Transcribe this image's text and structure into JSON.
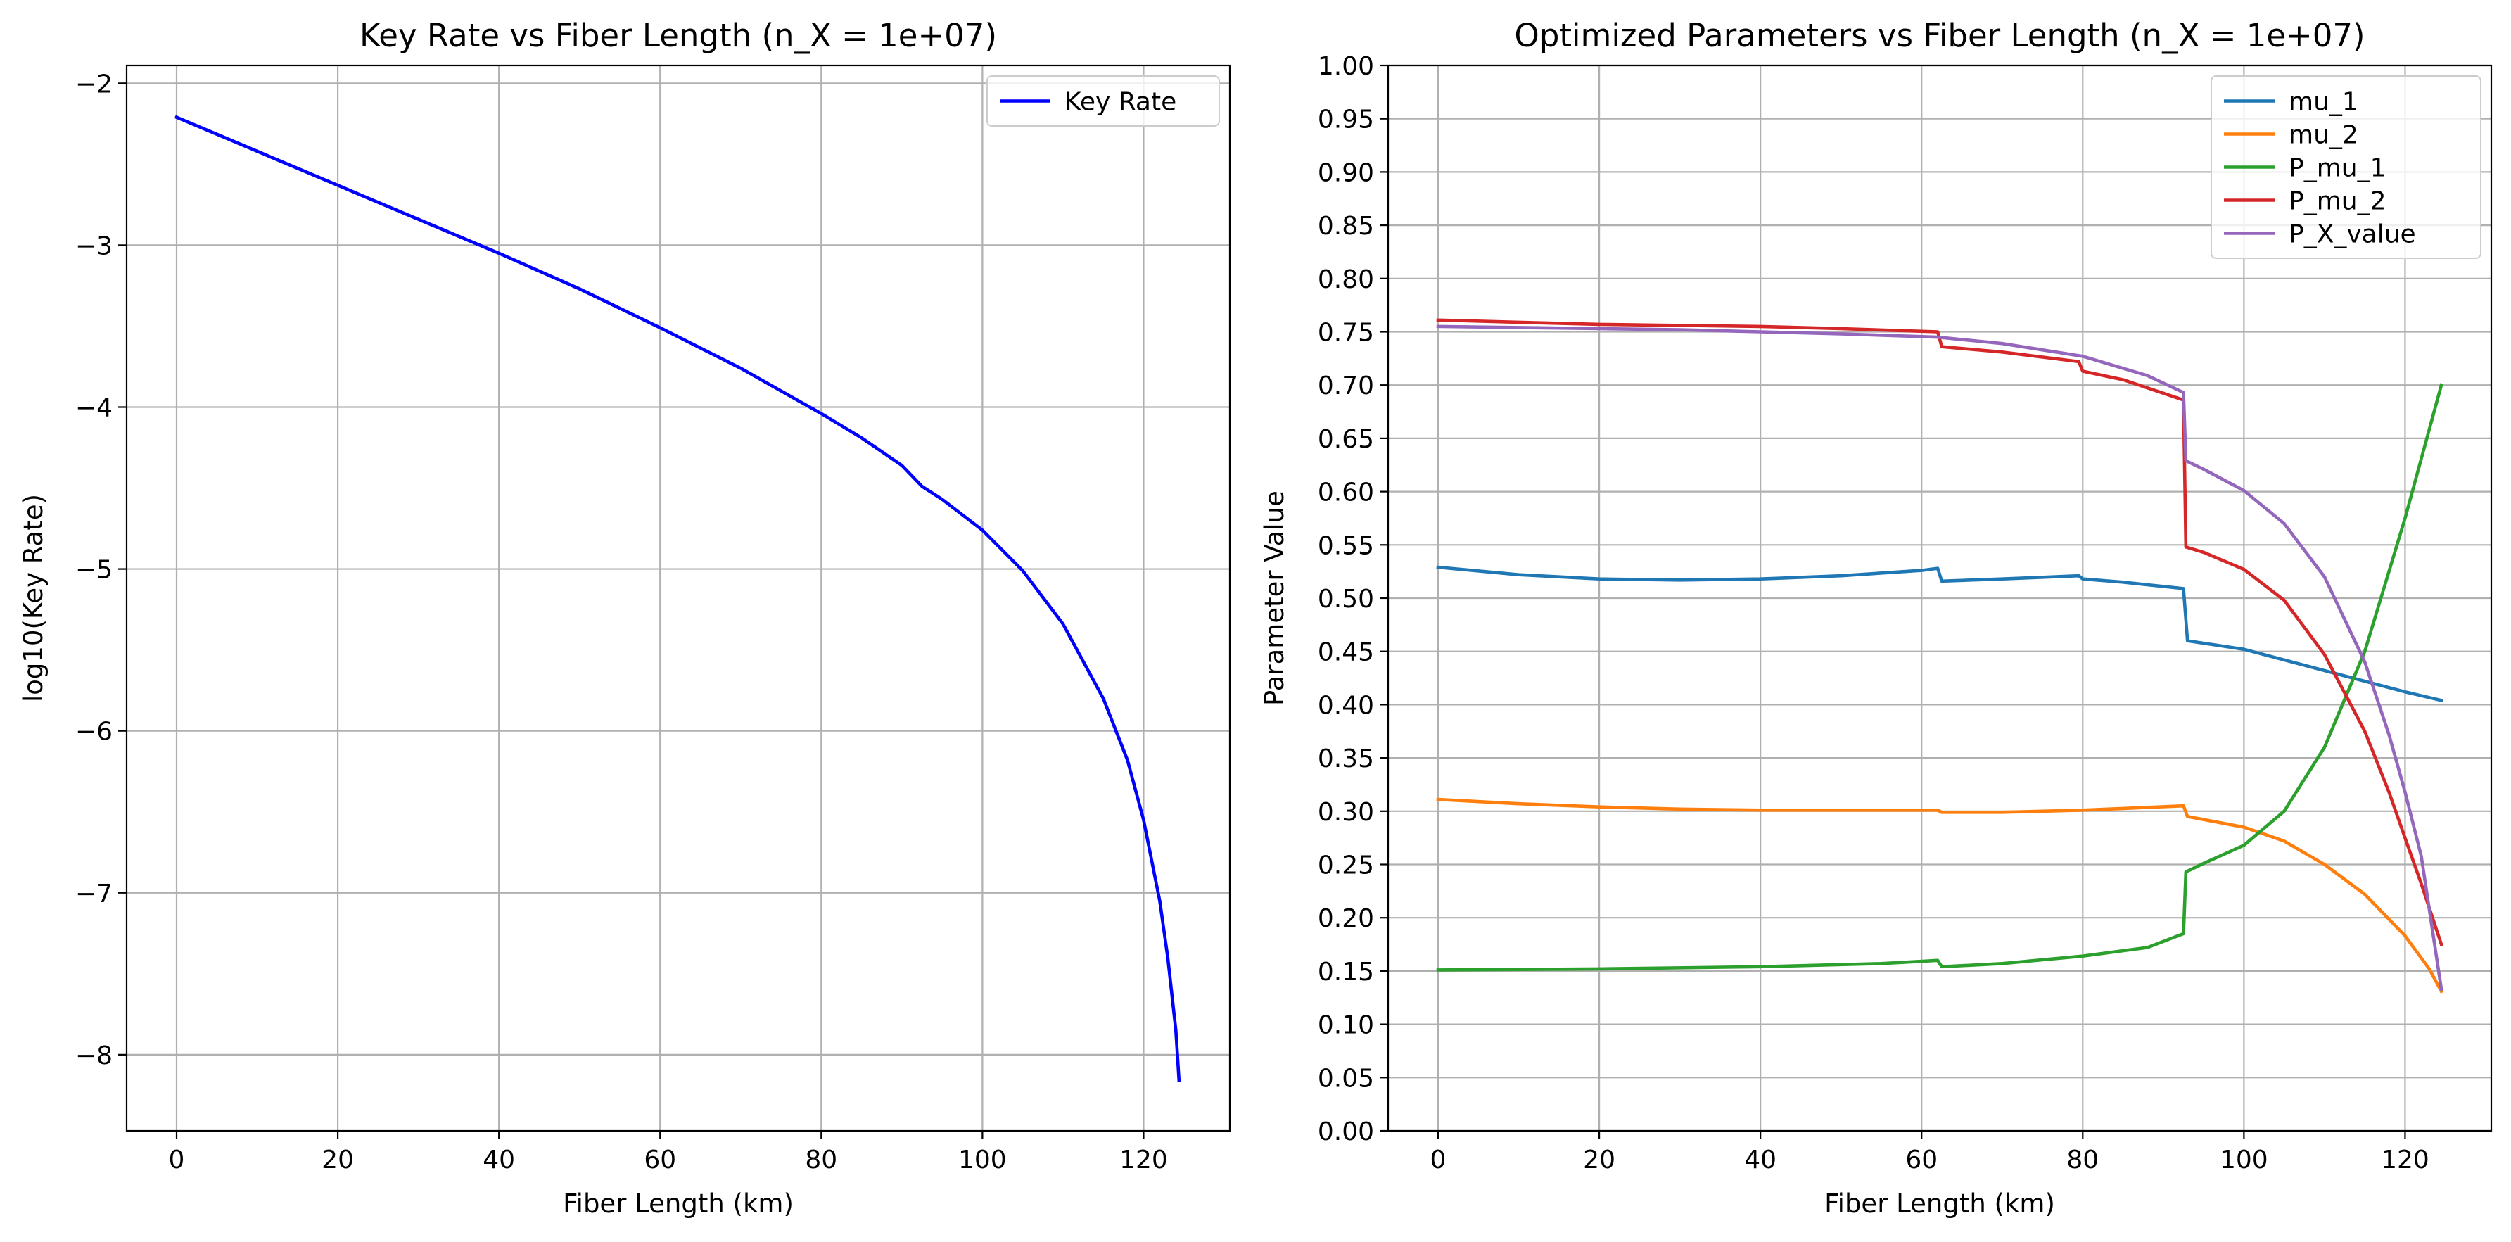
{
  "chart_data": [
    {
      "type": "line",
      "title": "Key Rate vs Fiber Length (n_X = 1e+07)",
      "xlabel": "Fiber Length (km)",
      "ylabel": "log10(Key Rate)",
      "xlim": [
        -6.2,
        130.7
      ],
      "ylim": [
        -8.47,
        -1.89
      ],
      "xticks": [
        0,
        20,
        40,
        60,
        80,
        100,
        120
      ],
      "xtick_labels": [
        "0",
        "20",
        "40",
        "60",
        "80",
        "100",
        "120"
      ],
      "yticks": [
        -8,
        -7,
        -6,
        -5,
        -4,
        -3,
        -2
      ],
      "ytick_labels": [
        "−8",
        "−7",
        "−6",
        "−5",
        "−4",
        "−3",
        "−2"
      ],
      "grid": true,
      "legend_position": "upper right",
      "series": [
        {
          "name": "Key Rate",
          "color": "#0000ff",
          "x": [
            0,
            10,
            20,
            30,
            40,
            50,
            60,
            70,
            80,
            85,
            90,
            92.5,
            95,
            100,
            105,
            110,
            115,
            118,
            120,
            122,
            123,
            124,
            124.4
          ],
          "y": [
            -2.21,
            -2.42,
            -2.63,
            -2.84,
            -3.05,
            -3.27,
            -3.51,
            -3.76,
            -4.04,
            -4.19,
            -4.36,
            -4.49,
            -4.57,
            -4.76,
            -5.01,
            -5.34,
            -5.8,
            -6.18,
            -6.55,
            -7.05,
            -7.4,
            -7.85,
            -8.16
          ]
        }
      ]
    },
    {
      "type": "line",
      "title": "Optimized Parameters vs Fiber Length (n_X = 1e+07)",
      "xlabel": "Fiber Length (km)",
      "ylabel": "Parameter Value",
      "xlim": [
        -6.2,
        130.7
      ],
      "ylim": [
        0,
        1
      ],
      "xticks": [
        0,
        20,
        40,
        60,
        80,
        100,
        120
      ],
      "xtick_labels": [
        "0",
        "20",
        "40",
        "60",
        "80",
        "100",
        "120"
      ],
      "yticks": [
        0,
        0.05,
        0.1,
        0.15,
        0.2,
        0.25,
        0.3,
        0.35,
        0.4,
        0.45,
        0.5,
        0.55,
        0.6,
        0.65,
        0.7,
        0.75,
        0.8,
        0.85,
        0.9,
        0.95,
        1.0
      ],
      "ytick_labels": [
        "0.00",
        "0.05",
        "0.10",
        "0.15",
        "0.20",
        "0.25",
        "0.30",
        "0.35",
        "0.40",
        "0.45",
        "0.50",
        "0.55",
        "0.60",
        "0.65",
        "0.70",
        "0.75",
        "0.80",
        "0.85",
        "0.90",
        "0.95",
        "1.00"
      ],
      "grid": true,
      "legend_position": "upper right",
      "series": [
        {
          "name": "mu_1",
          "color": "#1f77b4",
          "x": [
            0,
            10,
            20,
            30,
            40,
            50,
            60,
            62,
            62.5,
            70,
            79.5,
            80,
            85,
            92.5,
            93,
            100,
            110,
            120,
            124.5
          ],
          "y": [
            0.529,
            0.522,
            0.518,
            0.517,
            0.518,
            0.521,
            0.526,
            0.528,
            0.516,
            0.518,
            0.521,
            0.518,
            0.515,
            0.509,
            0.46,
            0.452,
            0.432,
            0.412,
            0.404
          ]
        },
        {
          "name": "mu_2",
          "color": "#ff7f0e",
          "x": [
            0,
            10,
            20,
            30,
            40,
            50,
            62,
            62.5,
            70,
            80,
            92.5,
            93,
            100,
            105,
            110,
            115,
            120,
            123,
            124.5
          ],
          "y": [
            0.311,
            0.307,
            0.304,
            0.302,
            0.301,
            0.301,
            0.301,
            0.299,
            0.299,
            0.301,
            0.305,
            0.295,
            0.285,
            0.272,
            0.25,
            0.222,
            0.183,
            0.152,
            0.131
          ]
        },
        {
          "name": "P_mu_1",
          "color": "#2ca02c",
          "x": [
            0,
            20,
            40,
            55,
            62,
            62.5,
            70,
            80,
            88,
            92.5,
            92.8,
            95,
            100,
            105,
            110,
            115,
            120,
            124.5
          ],
          "y": [
            0.151,
            0.152,
            0.154,
            0.157,
            0.16,
            0.154,
            0.157,
            0.164,
            0.172,
            0.185,
            0.243,
            0.251,
            0.268,
            0.3,
            0.36,
            0.45,
            0.575,
            0.7
          ]
        },
        {
          "name": "P_mu_2",
          "color": "#d62728",
          "x": [
            0,
            10,
            20,
            30,
            40,
            50,
            62,
            62.5,
            70,
            79.5,
            80,
            85,
            92.5,
            92.8,
            95,
            100,
            105,
            110,
            115,
            118,
            120,
            122,
            124.5
          ],
          "y": [
            0.761,
            0.759,
            0.757,
            0.756,
            0.755,
            0.753,
            0.75,
            0.736,
            0.731,
            0.722,
            0.713,
            0.705,
            0.686,
            0.548,
            0.543,
            0.527,
            0.498,
            0.447,
            0.375,
            0.318,
            0.275,
            0.232,
            0.175
          ]
        },
        {
          "name": "P_X_value",
          "color": "#9467bd",
          "x": [
            0,
            10,
            20,
            30,
            40,
            50,
            62,
            70,
            80,
            88,
            92.5,
            92.8,
            95,
            100,
            105,
            110,
            115,
            118,
            120,
            122,
            124.5
          ],
          "y": [
            0.755,
            0.754,
            0.753,
            0.752,
            0.75,
            0.748,
            0.745,
            0.739,
            0.727,
            0.709,
            0.693,
            0.629,
            0.621,
            0.601,
            0.57,
            0.52,
            0.44,
            0.372,
            0.318,
            0.258,
            0.133
          ]
        }
      ]
    }
  ]
}
